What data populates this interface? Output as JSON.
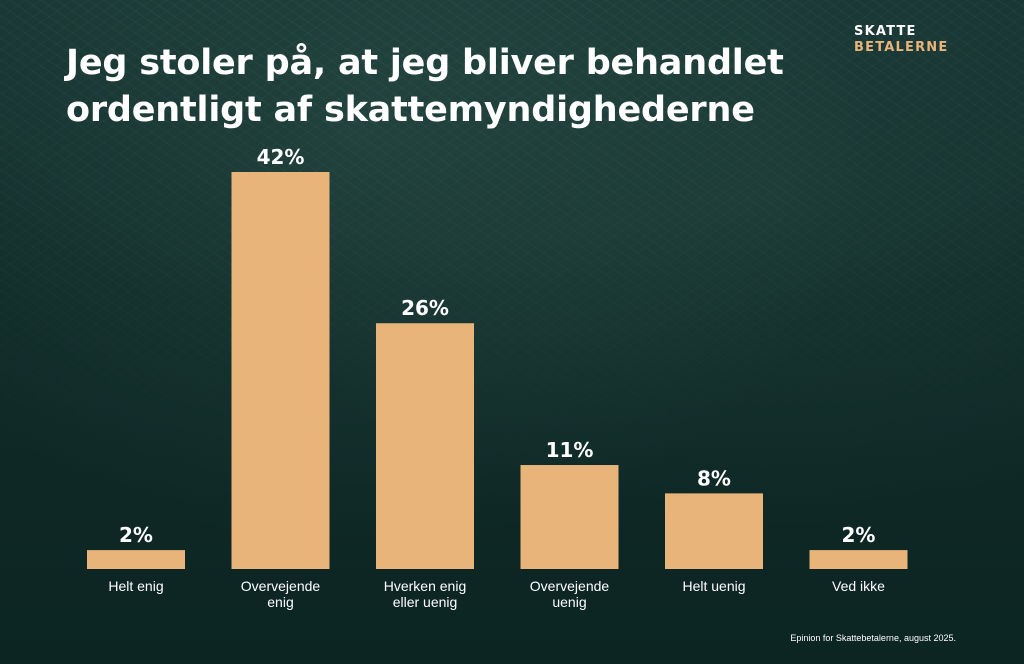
{
  "brand": {
    "line1": "SKATTE",
    "line2": "BETALERNE"
  },
  "source": "Epinion for Skattebetalerne, august 2025.",
  "colors": {
    "background": "#0f2a27",
    "bar": "#e8b47a",
    "text": "#ffffff",
    "brand_accent": "#e8b47a"
  },
  "chart_data": {
    "type": "bar",
    "title": "Jeg stoler på, at jeg bliver behandlet ordentligt af skattemyndighederne",
    "categories": [
      [
        "Helt enig"
      ],
      [
        "Overvejende",
        "enig"
      ],
      [
        "Hverken enig",
        "eller uenig"
      ],
      [
        "Overvejende",
        "uenig"
      ],
      [
        "Helt uenig"
      ],
      [
        "Ved ikke"
      ]
    ],
    "values": [
      2,
      42,
      26,
      11,
      8,
      2
    ],
    "value_labels": [
      "2%",
      "42%",
      "26%",
      "11%",
      "8%",
      "2%"
    ],
    "unit": "%",
    "ylim": [
      0,
      42
    ],
    "grid": false,
    "legend": "none",
    "xlabel": "",
    "ylabel": ""
  }
}
